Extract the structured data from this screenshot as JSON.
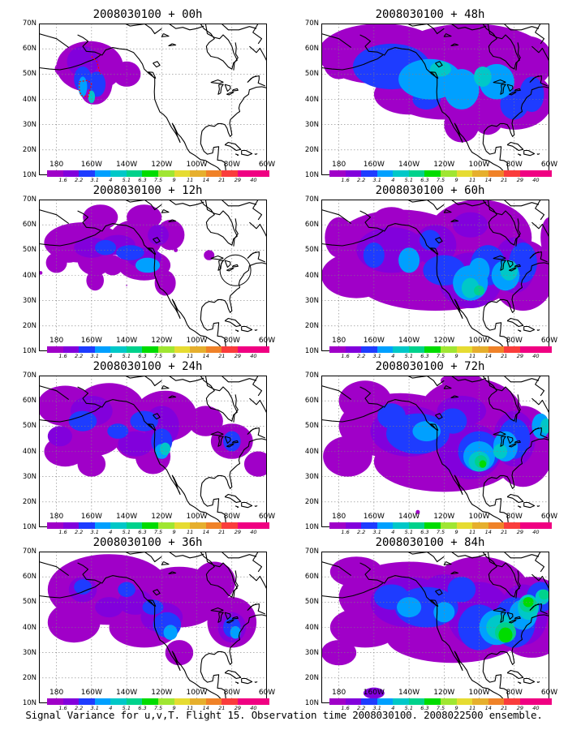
{
  "caption": "Signal Variance for u,v,T. Flight 15. Observation time 2008030100. 2008022500 ensemble.",
  "lat_labels": [
    "70N",
    "60N",
    "50N",
    "40N",
    "30N",
    "20N",
    "10N"
  ],
  "lon_labels": [
    "180",
    "160W",
    "140W",
    "120W",
    "100W",
    "80W",
    "60W"
  ],
  "colorbar": {
    "labels": [
      "1.6",
      "2.2",
      "3.1",
      "4",
      "5.1",
      "6.3",
      "7.5",
      "9",
      "11",
      "14",
      "21",
      "29",
      "40"
    ],
    "colors": [
      "#a000c8",
      "#8200dc",
      "#1e3cff",
      "#00a0ff",
      "#00c8c8",
      "#00d28c",
      "#00dc00",
      "#a0e632",
      "#e6dc32",
      "#e6af2d",
      "#f08228",
      "#fa3c3c",
      "#f00082"
    ]
  },
  "panels": [
    {
      "title": "2008030100 + 00h"
    },
    {
      "title": "2008030100 + 48h"
    },
    {
      "title": "2008030100 + 12h"
    },
    {
      "title": "2008030100 + 60h"
    },
    {
      "title": "2008030100 + 24h"
    },
    {
      "title": "2008030100 + 72h"
    },
    {
      "title": "2008030100 + 36h"
    },
    {
      "title": "2008030100 + 84h"
    }
  ]
}
